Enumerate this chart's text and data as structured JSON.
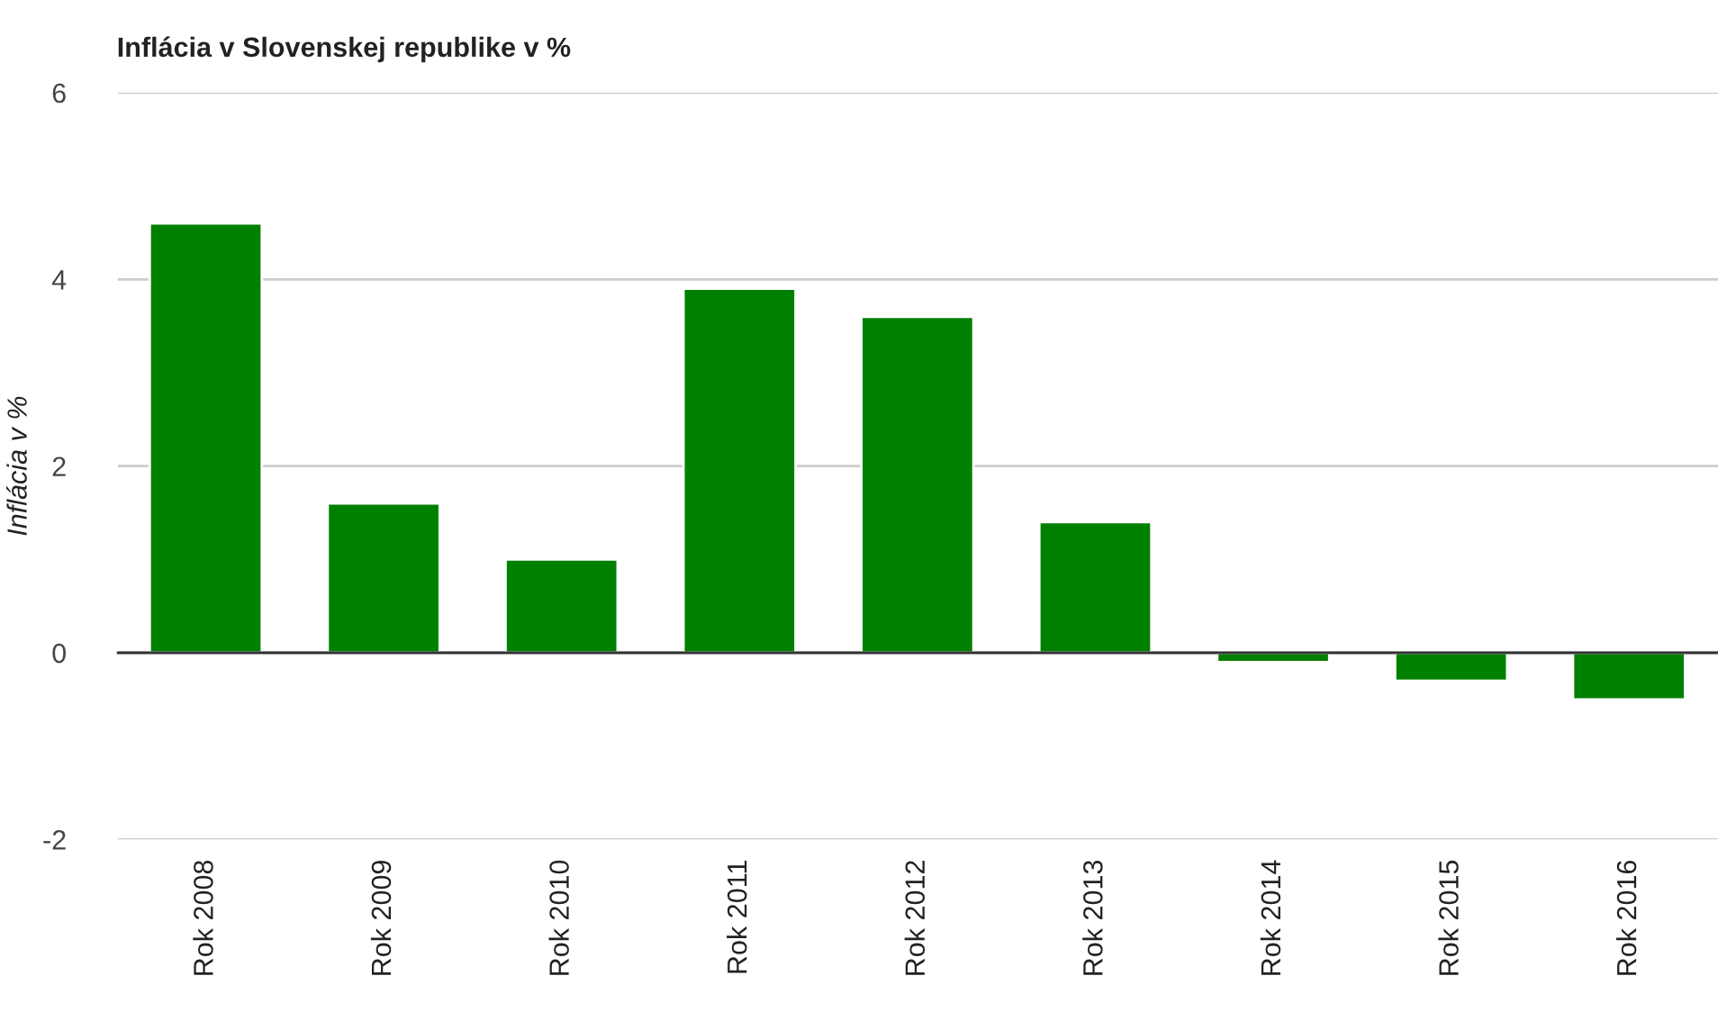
{
  "chart_data": {
    "type": "bar",
    "title": "Inflácia v Slovenskej republike v %",
    "ylabel": "Inflácia v %",
    "categories": [
      "Rok 2008",
      "Rok 2009",
      "Rok 2010",
      "Rok 2011",
      "Rok 2012",
      "Rok 2013",
      "Rok 2014",
      "Rok 2015",
      "Rok 2016"
    ],
    "values": [
      4.6,
      1.6,
      1.0,
      3.9,
      3.6,
      1.4,
      -0.1,
      -0.3,
      -0.5
    ],
    "color": "#008000",
    "ylim": [
      -2,
      6
    ],
    "yticks": [
      {
        "value": -2,
        "label": "-2"
      },
      0,
      2,
      4,
      6
    ],
    "grid": "y"
  }
}
